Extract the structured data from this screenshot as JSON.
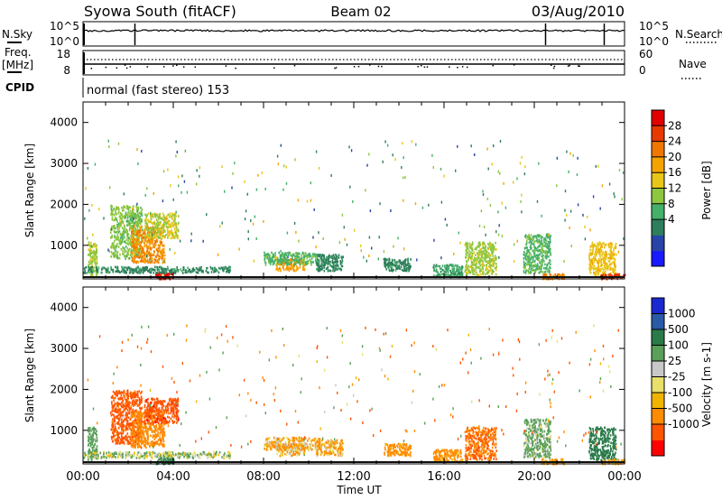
{
  "header": {
    "station": "Syowa South (fitACF)",
    "beam": "Beam 02",
    "date": "03/Aug/2010"
  },
  "status_panels": {
    "nsky_label": "N.Sky",
    "nsearch_label": "N.Search",
    "left_ticks": [
      "10^5",
      "10^0"
    ],
    "right_ticks": [
      "10^5",
      "10^0"
    ],
    "freq_label": "Freq.",
    "freq_unit": "[MHz]",
    "freq_ticks": [
      "18",
      "8"
    ],
    "nave_ticks": [
      "60",
      "0"
    ],
    "nave_label": "Nave",
    "cpid_label": "CPID",
    "cpid_text": "normal (fast stereo) 153"
  },
  "x_axis": {
    "label": "Time UT",
    "ticks": [
      "00:00",
      "04:00",
      "08:00",
      "12:00",
      "16:00",
      "20:00",
      "00:00"
    ]
  },
  "colors": {
    "power_scale": [
      "#1a1aff",
      "#2844a8",
      "#2e7d5c",
      "#45b06a",
      "#8dc63f",
      "#e8c619",
      "#f5a300",
      "#f07800",
      "#e83a00",
      "#e00000"
    ],
    "velocity_scale": [
      "#ff0000",
      "#ff5500",
      "#ff8c00",
      "#f0b400",
      "#e8e06a",
      "#c8c8c8",
      "#5aa05a",
      "#2a7a4a",
      "#2a5aa8",
      "#1a2ad0"
    ]
  },
  "chart_data": [
    {
      "type": "heatmap",
      "panel": "power",
      "ylabel": "Slant Range [km]",
      "yticks": [
        "4000",
        "3000",
        "2000",
        "1000"
      ],
      "ylim": [
        180,
        4500
      ],
      "xlim_hours": [
        0,
        24
      ],
      "colorbar": {
        "label": "Power [dB]",
        "ticks": [
          "28",
          "24",
          "20",
          "16",
          "12",
          "8",
          "4"
        ],
        "range": [
          0,
          30
        ]
      },
      "regions": [
        {
          "t0": 0.2,
          "t1": 0.6,
          "r0": 300,
          "r1": 1100,
          "v": 14
        },
        {
          "t0": 1.2,
          "t1": 2.6,
          "r0": 700,
          "r1": 2000,
          "v": 13
        },
        {
          "t0": 2.1,
          "t1": 3.6,
          "r0": 600,
          "r1": 1500,
          "v": 21
        },
        {
          "t0": 2.7,
          "t1": 4.2,
          "r0": 1200,
          "r1": 1800,
          "v": 15
        },
        {
          "t0": 3.2,
          "t1": 4.0,
          "r0": 200,
          "r1": 350,
          "v": 27
        },
        {
          "t0": 0.0,
          "t1": 6.5,
          "r0": 350,
          "r1": 500,
          "v": 8
        },
        {
          "t0": 8.5,
          "t1": 9.8,
          "r0": 400,
          "r1": 700,
          "v": 20
        },
        {
          "t0": 8.0,
          "t1": 10.5,
          "r0": 550,
          "r1": 850,
          "v": 11
        },
        {
          "t0": 10.3,
          "t1": 11.5,
          "r0": 400,
          "r1": 800,
          "v": 8
        },
        {
          "t0": 13.3,
          "t1": 14.5,
          "r0": 400,
          "r1": 700,
          "v": 8
        },
        {
          "t0": 15.5,
          "t1": 16.8,
          "r0": 250,
          "r1": 550,
          "v": 10
        },
        {
          "t0": 16.9,
          "t1": 18.3,
          "r0": 300,
          "r1": 1100,
          "v": 14
        },
        {
          "t0": 19.5,
          "t1": 20.7,
          "r0": 350,
          "r1": 1300,
          "v": 11
        },
        {
          "t0": 20.3,
          "t1": 21.3,
          "r0": 200,
          "r1": 320,
          "v": 22
        },
        {
          "t0": 22.4,
          "t1": 23.6,
          "r0": 300,
          "r1": 1100,
          "v": 17
        },
        {
          "t0": 22.9,
          "t1": 24.0,
          "r0": 200,
          "r1": 320,
          "v": 26
        }
      ]
    },
    {
      "type": "heatmap",
      "panel": "velocity",
      "ylabel": "Slant Range [km]",
      "yticks": [
        "4000",
        "3000",
        "2000",
        "1000"
      ],
      "ylim": [
        180,
        4500
      ],
      "xlim_hours": [
        0,
        24
      ],
      "colorbar": {
        "label": "Velocity [m s-1]",
        "ticks": [
          "1000",
          "500",
          "100",
          "25",
          "-25",
          "-100",
          "-500",
          "-1000"
        ],
        "range": [
          -1000,
          1000
        ]
      },
      "regions": [
        {
          "t0": 0.2,
          "t1": 0.6,
          "r0": 300,
          "r1": 1100,
          "v": 150
        },
        {
          "t0": 1.2,
          "t1": 2.6,
          "r0": 700,
          "r1": 2000,
          "v": -400
        },
        {
          "t0": 2.1,
          "t1": 3.6,
          "r0": 600,
          "r1": 1500,
          "v": -200
        },
        {
          "t0": 2.7,
          "t1": 4.2,
          "r0": 1200,
          "r1": 1800,
          "v": -600
        },
        {
          "t0": 3.2,
          "t1": 4.0,
          "r0": 200,
          "r1": 350,
          "v": 400
        },
        {
          "t0": 0.0,
          "t1": 6.5,
          "r0": 350,
          "r1": 500,
          "v": 60
        },
        {
          "t0": 8.5,
          "t1": 9.8,
          "r0": 400,
          "r1": 700,
          "v": -40
        },
        {
          "t0": 8.0,
          "t1": 10.5,
          "r0": 550,
          "r1": 850,
          "v": -60
        },
        {
          "t0": 10.3,
          "t1": 11.5,
          "r0": 400,
          "r1": 800,
          "v": -80
        },
        {
          "t0": 13.3,
          "t1": 14.5,
          "r0": 400,
          "r1": 700,
          "v": -150
        },
        {
          "t0": 15.5,
          "t1": 16.8,
          "r0": 250,
          "r1": 550,
          "v": -120
        },
        {
          "t0": 16.9,
          "t1": 18.3,
          "r0": 300,
          "r1": 1100,
          "v": -300
        },
        {
          "t0": 19.5,
          "t1": 20.7,
          "r0": 350,
          "r1": 1300,
          "v": 120
        },
        {
          "t0": 20.3,
          "t1": 21.3,
          "r0": 200,
          "r1": 320,
          "v": -90
        },
        {
          "t0": 22.4,
          "t1": 23.6,
          "r0": 300,
          "r1": 1100,
          "v": 500
        },
        {
          "t0": 22.9,
          "t1": 24.0,
          "r0": 200,
          "r1": 320,
          "v": -50
        }
      ]
    }
  ]
}
